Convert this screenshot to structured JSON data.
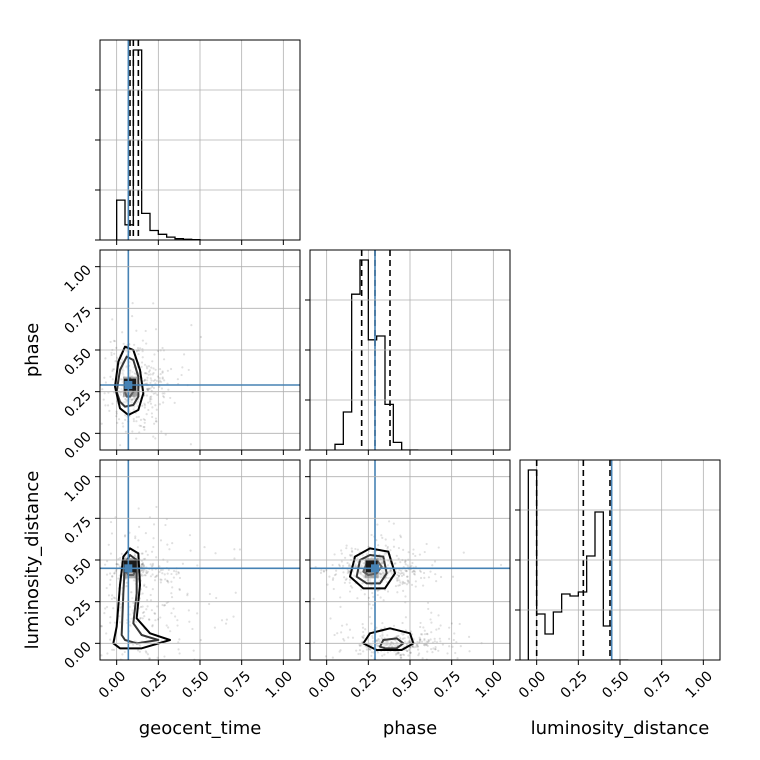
{
  "chart_data": {
    "type": "corner",
    "parameters": [
      "geocent_time",
      "phase",
      "luminosity_distance"
    ],
    "axis_range": [
      -0.1,
      1.1
    ],
    "ticks": [
      0.0,
      0.25,
      0.5,
      0.75,
      1.0
    ],
    "tick_labels": [
      "0.00",
      "0.25",
      "0.50",
      "0.75",
      "1.00"
    ],
    "grid": true,
    "truths": {
      "geocent_time": 0.07,
      "phase": 0.29,
      "luminosity_distance": 0.45
    },
    "truth_color": "#4682b4",
    "hist_color": "#000000",
    "histograms": {
      "geocent_time": {
        "bin_edges": [
          0.0,
          0.05,
          0.1,
          0.15,
          0.2,
          0.25,
          0.3,
          0.35,
          0.4,
          0.45,
          0.5
        ],
        "counts": [
          0.21,
          0.08,
          1.0,
          0.14,
          0.05,
          0.03,
          0.015,
          0.007,
          0.004,
          0.002
        ],
        "quantiles": [
          0.08,
          0.1,
          0.13
        ]
      },
      "phase": {
        "bin_edges": [
          0.05,
          0.1,
          0.15,
          0.2,
          0.25,
          0.3,
          0.35,
          0.4,
          0.45,
          0.5,
          0.55
        ],
        "counts": [
          0.03,
          0.2,
          0.82,
          1.0,
          0.58,
          0.6,
          0.24,
          0.04,
          0.0,
          0.0
        ],
        "quantiles": [
          0.21,
          0.29,
          0.38
        ]
      },
      "luminosity_distance": {
        "bin_edges": [
          -0.05,
          0.0,
          0.05,
          0.1,
          0.15,
          0.2,
          0.25,
          0.3,
          0.35,
          0.4,
          0.45,
          0.5,
          0.55
        ],
        "counts": [
          0.95,
          0.23,
          0.13,
          0.24,
          0.33,
          0.32,
          0.34,
          0.52,
          0.74,
          0.17,
          0.0,
          0.0
        ],
        "quantiles": [
          0.0,
          0.28,
          0.44
        ]
      }
    },
    "joint": [
      {
        "x": "geocent_time",
        "y": "phase",
        "density_center": [
          0.08,
          0.28
        ],
        "contours": [
          [
            [
              0.05,
              0.25
            ],
            [
              0.06,
              0.3
            ],
            [
              0.08,
              0.33
            ],
            [
              0.1,
              0.3
            ],
            [
              0.1,
              0.25
            ],
            [
              0.08,
              0.22
            ],
            [
              0.06,
              0.22
            ]
          ],
          [
            [
              0.0,
              0.25
            ],
            [
              0.02,
              0.38
            ],
            [
              0.06,
              0.46
            ],
            [
              0.1,
              0.44
            ],
            [
              0.13,
              0.34
            ],
            [
              0.13,
              0.22
            ],
            [
              0.1,
              0.17
            ],
            [
              0.05,
              0.16
            ],
            [
              0.02,
              0.19
            ]
          ],
          [
            [
              -0.01,
              0.28
            ],
            [
              0.01,
              0.43
            ],
            [
              0.05,
              0.52
            ],
            [
              0.1,
              0.5
            ],
            [
              0.14,
              0.38
            ],
            [
              0.16,
              0.24
            ],
            [
              0.13,
              0.14
            ],
            [
              0.07,
              0.11
            ],
            [
              0.02,
              0.15
            ]
          ]
        ]
      },
      {
        "x": "geocent_time",
        "y": "luminosity_distance",
        "density_center": [
          0.08,
          0.45
        ],
        "contours": [
          [
            [
              0.05,
              0.44
            ],
            [
              0.06,
              0.48
            ],
            [
              0.1,
              0.49
            ],
            [
              0.12,
              0.45
            ],
            [
              0.1,
              0.41
            ],
            [
              0.07,
              0.41
            ]
          ],
          [
            [
              0.03,
              0.05
            ],
            [
              0.04,
              0.3
            ],
            [
              0.05,
              0.48
            ],
            [
              0.08,
              0.53
            ],
            [
              0.12,
              0.5
            ],
            [
              0.12,
              0.3
            ],
            [
              0.1,
              0.12
            ],
            [
              0.15,
              0.05
            ],
            [
              0.25,
              0.02
            ],
            [
              0.12,
              0.0
            ],
            [
              0.05,
              0.02
            ]
          ],
          [
            [
              -0.02,
              0.0
            ],
            [
              0.0,
              0.1
            ],
            [
              0.02,
              0.35
            ],
            [
              0.04,
              0.52
            ],
            [
              0.08,
              0.57
            ],
            [
              0.13,
              0.54
            ],
            [
              0.14,
              0.35
            ],
            [
              0.12,
              0.15
            ],
            [
              0.2,
              0.06
            ],
            [
              0.32,
              0.02
            ],
            [
              0.15,
              -0.03
            ],
            [
              0.02,
              -0.03
            ]
          ]
        ]
      },
      {
        "x": "phase",
        "y": "luminosity_distance",
        "density_center": [
          0.27,
          0.45
        ],
        "contours": [
          [
            [
              0.22,
              0.43
            ],
            [
              0.24,
              0.48
            ],
            [
              0.3,
              0.5
            ],
            [
              0.33,
              0.46
            ],
            [
              0.3,
              0.42
            ],
            [
              0.25,
              0.41
            ]
          ],
          [
            [
              0.18,
              0.4
            ],
            [
              0.2,
              0.5
            ],
            [
              0.26,
              0.53
            ],
            [
              0.34,
              0.52
            ],
            [
              0.36,
              0.42
            ],
            [
              0.32,
              0.36
            ],
            [
              0.24,
              0.36
            ]
          ],
          [
            [
              0.14,
              0.4
            ],
            [
              0.17,
              0.52
            ],
            [
              0.26,
              0.57
            ],
            [
              0.37,
              0.55
            ],
            [
              0.41,
              0.42
            ],
            [
              0.35,
              0.33
            ],
            [
              0.22,
              0.33
            ]
          ],
          [
            [
              0.32,
              -0.02
            ],
            [
              0.34,
              0.02
            ],
            [
              0.42,
              0.03
            ],
            [
              0.46,
              0.0
            ],
            [
              0.42,
              -0.03
            ],
            [
              0.35,
              -0.03
            ]
          ],
          [
            [
              0.22,
              0.0
            ],
            [
              0.26,
              0.06
            ],
            [
              0.38,
              0.09
            ],
            [
              0.5,
              0.06
            ],
            [
              0.52,
              0.0
            ],
            [
              0.45,
              -0.04
            ],
            [
              0.3,
              -0.04
            ]
          ]
        ]
      }
    ]
  }
}
